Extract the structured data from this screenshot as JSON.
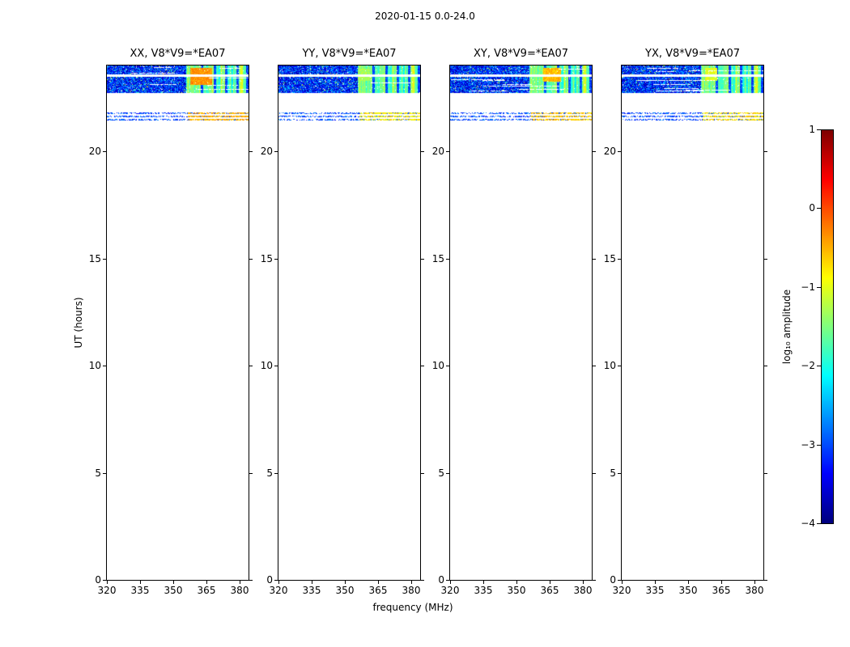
{
  "chart_data": {
    "type": "heatmap",
    "suptitle": "2020-01-15 0.0-24.0",
    "xlabel": "frequency (MHz)",
    "ylabel": "UT (hours)",
    "colormap": "jet",
    "x_range_mhz": [
      320,
      384
    ],
    "x_ticks": [
      320,
      335,
      350,
      365,
      380
    ],
    "y_range_hours": [
      0,
      24
    ],
    "y_ticks": [
      0,
      5,
      10,
      15,
      20
    ],
    "colorbar": {
      "label": "log₁₀ amplitude",
      "value_range": [
        -4,
        1
      ],
      "ticks": [
        {
          "label": "1",
          "value": 1
        },
        {
          "label": "0",
          "value": 0
        },
        {
          "label": "−1",
          "value": -1
        },
        {
          "label": "−2",
          "value": -2
        },
        {
          "label": "−3",
          "value": -3
        },
        {
          "label": "−4",
          "value": -4
        }
      ]
    },
    "panels": [
      {
        "title": "XX, V8*V9=*EA07",
        "hot_regions": [
          {
            "freq_mhz": [
              357.5,
              367.5
            ],
            "hours": [
              23.12,
              23.92
            ],
            "log10_amp": -0.35
          }
        ],
        "line_log10_amp": [
          -0.8,
          -0.2
        ]
      },
      {
        "title": "YY, V8*V9=*EA07",
        "hot_regions": [
          {
            "freq_mhz": [
              355.5,
              361.0
            ],
            "hours": [
              23.3,
              23.85
            ],
            "log10_amp": -1.3
          }
        ],
        "line_log10_amp": [
          -1.2,
          -0.45
        ]
      },
      {
        "title": "XY, V8*V9=*EA07",
        "hot_regions": [
          {
            "freq_mhz": [
              362.0,
              370.0
            ],
            "hours": [
              23.25,
              23.92
            ],
            "log10_amp": -0.55
          }
        ],
        "line_log10_amp": [
          -0.9,
          -0.3
        ]
      },
      {
        "title": "YX, V8*V9=*EA07",
        "hot_regions": [
          {
            "freq_mhz": [
              357.5,
              363.0
            ],
            "hours": [
              23.3,
              23.9
            ],
            "log10_amp": -1.0
          }
        ],
        "line_log10_amp": [
          -1.1,
          -0.4
        ]
      }
    ],
    "features": {
      "observed_band": {
        "hours": [
          22.72,
          24.0
        ],
        "base_log10_amp": -3.2,
        "noise_amp": 0.75,
        "white_gap_hours": [
          23.5,
          23.58
        ],
        "rfi_stripes": {
          "freq_start_mhz": 355.5,
          "freq_end_mhz": 382.8,
          "log10_amp_range": [
            -2.3,
            -0.8
          ],
          "gap_freqs_mhz": [
            362.8,
            368.6,
            373.8,
            379.0
          ]
        }
      },
      "scan_lines": {
        "hours": [
          21.81,
          21.66,
          21.51
        ],
        "blue_log10_amp": -3.0,
        "bright_freq_start_mhz": 356.5
      }
    }
  }
}
